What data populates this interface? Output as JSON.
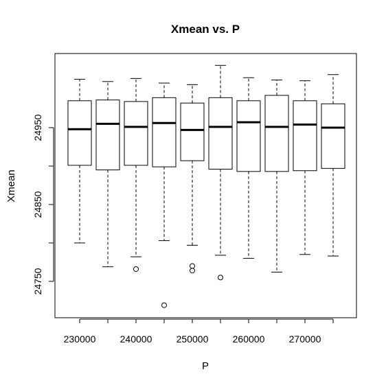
{
  "chart_data": {
    "type": "boxplot",
    "title": "Xmean vs. P",
    "xlabel": "P",
    "ylabel": "Xmean",
    "ylim": [
      24690,
      25035
    ],
    "x_tick_labels": [
      "230000",
      "240000",
      "250000",
      "260000",
      "270000"
    ],
    "y_ticks": [
      24750,
      24850,
      24950
    ],
    "groups": [
      {
        "x": 230000,
        "low": 24800,
        "q1": 24901,
        "median": 24948,
        "q3": 24985,
        "high": 25013,
        "outliers": []
      },
      {
        "x": 235000,
        "low": 24769,
        "q1": 24895,
        "median": 24955,
        "q3": 24986,
        "high": 25010,
        "outliers": []
      },
      {
        "x": 240000,
        "low": 24782,
        "q1": 24901,
        "median": 24951,
        "q3": 24984,
        "high": 25014,
        "outliers": [
          24766
        ]
      },
      {
        "x": 245000,
        "low": 24803,
        "q1": 24899,
        "median": 24956,
        "q3": 24989,
        "high": 25008,
        "outliers": [
          24719
        ]
      },
      {
        "x": 250000,
        "low": 24797,
        "q1": 24907,
        "median": 24947,
        "q3": 24982,
        "high": 25006,
        "outliers": [
          24770,
          24764
        ]
      },
      {
        "x": 255000,
        "low": 24784,
        "q1": 24896,
        "median": 24951,
        "q3": 24989,
        "high": 25031,
        "outliers": [
          24755
        ]
      },
      {
        "x": 260000,
        "low": 24780,
        "q1": 24893,
        "median": 24957,
        "q3": 24985,
        "high": 25015,
        "outliers": []
      },
      {
        "x": 265000,
        "low": 24762,
        "q1": 24893,
        "median": 24951,
        "q3": 24992,
        "high": 25012,
        "outliers": []
      },
      {
        "x": 270000,
        "low": 24785,
        "q1": 24894,
        "median": 24954,
        "q3": 24985,
        "high": 25011,
        "outliers": []
      },
      {
        "x": 275000,
        "low": 24783,
        "q1": 24897,
        "median": 24950,
        "q3": 24981,
        "high": 25019,
        "outliers": []
      }
    ]
  }
}
